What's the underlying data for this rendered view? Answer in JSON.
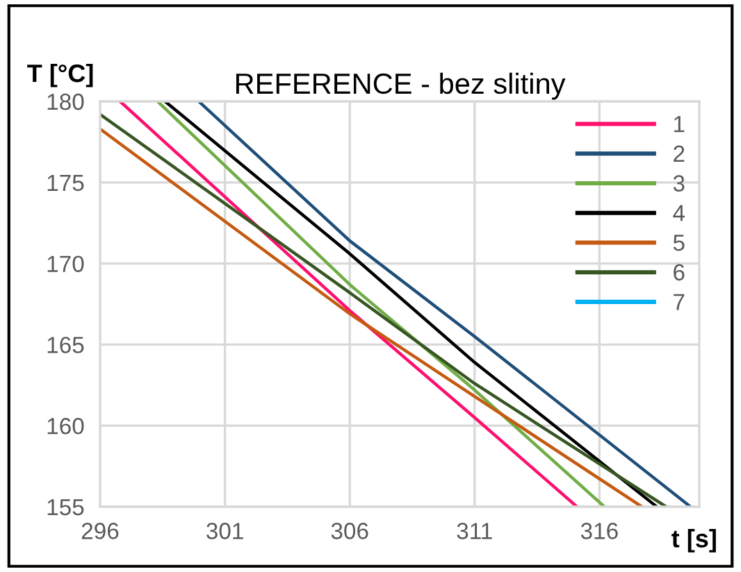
{
  "chart_data": {
    "type": "line",
    "title": "REFERENCE - bez slitiny",
    "xlabel": "t [s]",
    "ylabel": "T [°C]",
    "xlim": [
      296,
      320
    ],
    "xticks": [
      296,
      301,
      306,
      311,
      316
    ],
    "ylim": [
      155,
      180
    ],
    "yticks": [
      155,
      160,
      165,
      170,
      175,
      180
    ],
    "grid": true,
    "legend": "right",
    "marker": "none",
    "line_style": "solid",
    "series": [
      {
        "name": "1",
        "color": "#ff0f6e",
        "x": [
          296.8,
          306,
          311,
          315.1
        ],
        "values": [
          180,
          167.1,
          160.5,
          155
        ]
      },
      {
        "name": "2",
        "color": "#1f4e79",
        "x": [
          299.95,
          306,
          311,
          319.65
        ],
        "values": [
          180,
          171.4,
          165.5,
          155
        ]
      },
      {
        "name": "3",
        "color": "#70ad47",
        "x": [
          298.3,
          306,
          311,
          316.2
        ],
        "values": [
          180,
          168.7,
          162.2,
          155
        ]
      },
      {
        "name": "4",
        "color": "#000000",
        "x": [
          298.6,
          306,
          311,
          318.3
        ],
        "values": [
          180,
          170.6,
          163.9,
          155
        ]
      },
      {
        "name": "5",
        "color": "#c55a11",
        "x": [
          296,
          306,
          311,
          317.7
        ],
        "values": [
          178.3,
          166.9,
          161.8,
          155
        ]
      },
      {
        "name": "6",
        "color": "#375623",
        "x": [
          296,
          306,
          311,
          318.67
        ],
        "values": [
          179.2,
          168.2,
          162.6,
          155
        ]
      },
      {
        "name": "7",
        "color": "#00b0f0"
      }
    ]
  }
}
